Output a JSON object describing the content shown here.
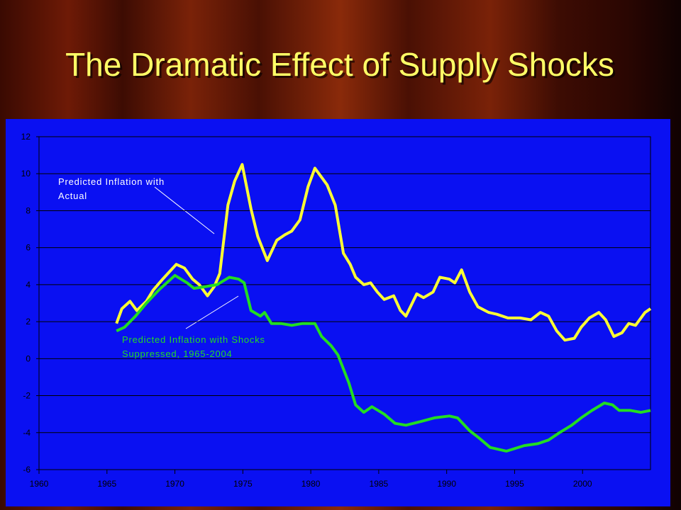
{
  "chart_data": {
    "type": "line",
    "title": "The Dramatic Effect of Supply Shocks",
    "annotations": [
      [
        "Predicted Inflation with",
        "Actual"
      ],
      [
        "Predicted Inflation with Shocks",
        "Suppressed, 1965-2004"
      ]
    ],
    "series": [
      {
        "color": "#ffff33",
        "x": [
          1965.7,
          1966.1,
          1966.7,
          1967.2,
          1967.9,
          1968.4,
          1969.1,
          1970.1,
          1970.7,
          1971.3,
          1971.8,
          1972.4,
          1972.9,
          1973.3,
          1973.9,
          1974.4,
          1974.95,
          1975.6,
          1976.1,
          1976.8,
          1977.5,
          1978.1,
          1978.6,
          1979.2,
          1979.8,
          1980.3,
          1980.7,
          1981.2,
          1981.8,
          1982.4,
          1982.9,
          1983.3,
          1983.9,
          1984.4,
          1984.9,
          1985.4,
          1986.1,
          1986.6,
          1987.0,
          1987.8,
          1988.3,
          1989.0,
          1989.5,
          1990.2,
          1990.6,
          1991.1,
          1991.7,
          1992.3,
          1993.1,
          1993.7,
          1994.5,
          1995.4,
          1996.2,
          1996.9,
          1997.5,
          1998.1,
          1998.7,
          1999.4,
          1999.9,
          2000.5,
          2001.2,
          2001.7,
          2002.3,
          2002.9,
          2003.4,
          2003.9,
          2004.6,
          2005.0
        ],
        "values": [
          1.9,
          2.7,
          3.1,
          2.6,
          3.1,
          3.7,
          4.3,
          5.1,
          4.9,
          4.3,
          4.0,
          3.4,
          3.9,
          4.6,
          8.3,
          9.6,
          10.5,
          8.1,
          6.6,
          5.3,
          6.4,
          6.7,
          6.9,
          7.5,
          9.3,
          10.3,
          9.9,
          9.4,
          8.3,
          5.7,
          5.1,
          4.4,
          4.0,
          4.1,
          3.6,
          3.2,
          3.4,
          2.6,
          2.3,
          3.5,
          3.3,
          3.6,
          4.4,
          4.3,
          4.1,
          4.8,
          3.6,
          2.8,
          2.5,
          2.4,
          2.2,
          2.2,
          2.1,
          2.5,
          2.3,
          1.5,
          1.0,
          1.1,
          1.7,
          2.2,
          2.5,
          2.1,
          1.2,
          1.4,
          1.9,
          1.8,
          2.5,
          2.7
        ]
      },
      {
        "color": "#22dd22",
        "x": [
          1965.7,
          1966.3,
          1967.1,
          1967.9,
          1968.8,
          1970.0,
          1970.9,
          1971.4,
          1972.3,
          1973.1,
          1974.0,
          1974.7,
          1975.1,
          1975.6,
          1976.3,
          1976.6,
          1977.1,
          1977.8,
          1978.6,
          1979.4,
          1980.3,
          1980.8,
          1981.5,
          1982.0,
          1982.8,
          1983.3,
          1983.9,
          1984.5,
          1985.4,
          1986.2,
          1987.0,
          1988.1,
          1989.1,
          1990.2,
          1990.8,
          1991.7,
          1992.4,
          1993.2,
          1994.4,
          1995.7,
          1996.7,
          1997.5,
          1998.3,
          1999.2,
          1999.9,
          2000.7,
          2001.6,
          2002.2,
          2002.7,
          2003.5,
          2004.3,
          2005.0
        ],
        "values": [
          1.5,
          1.7,
          2.3,
          3.0,
          3.7,
          4.5,
          4.1,
          3.8,
          3.9,
          4.0,
          4.4,
          4.3,
          4.1,
          2.6,
          2.3,
          2.5,
          1.9,
          1.9,
          1.8,
          1.9,
          1.9,
          1.2,
          0.7,
          0.2,
          -1.3,
          -2.5,
          -2.9,
          -2.6,
          -3.0,
          -3.5,
          -3.6,
          -3.4,
          -3.2,
          -3.1,
          -3.2,
          -3.9,
          -4.3,
          -4.8,
          -5.0,
          -4.7,
          -4.6,
          -4.4,
          -4.0,
          -3.6,
          -3.2,
          -2.8,
          -2.4,
          -2.5,
          -2.8,
          -2.8,
          -2.9,
          -2.8
        ]
      }
    ],
    "xlim": [
      1960,
      2005
    ],
    "xticks": [
      1960,
      1965,
      1970,
      1975,
      1980,
      1985,
      1990,
      1995,
      2000
    ],
    "ylim": [
      -6,
      12
    ],
    "yticks": [
      -6,
      -4,
      -2,
      0,
      2,
      4,
      6,
      8,
      10,
      12
    ],
    "grid": true
  }
}
